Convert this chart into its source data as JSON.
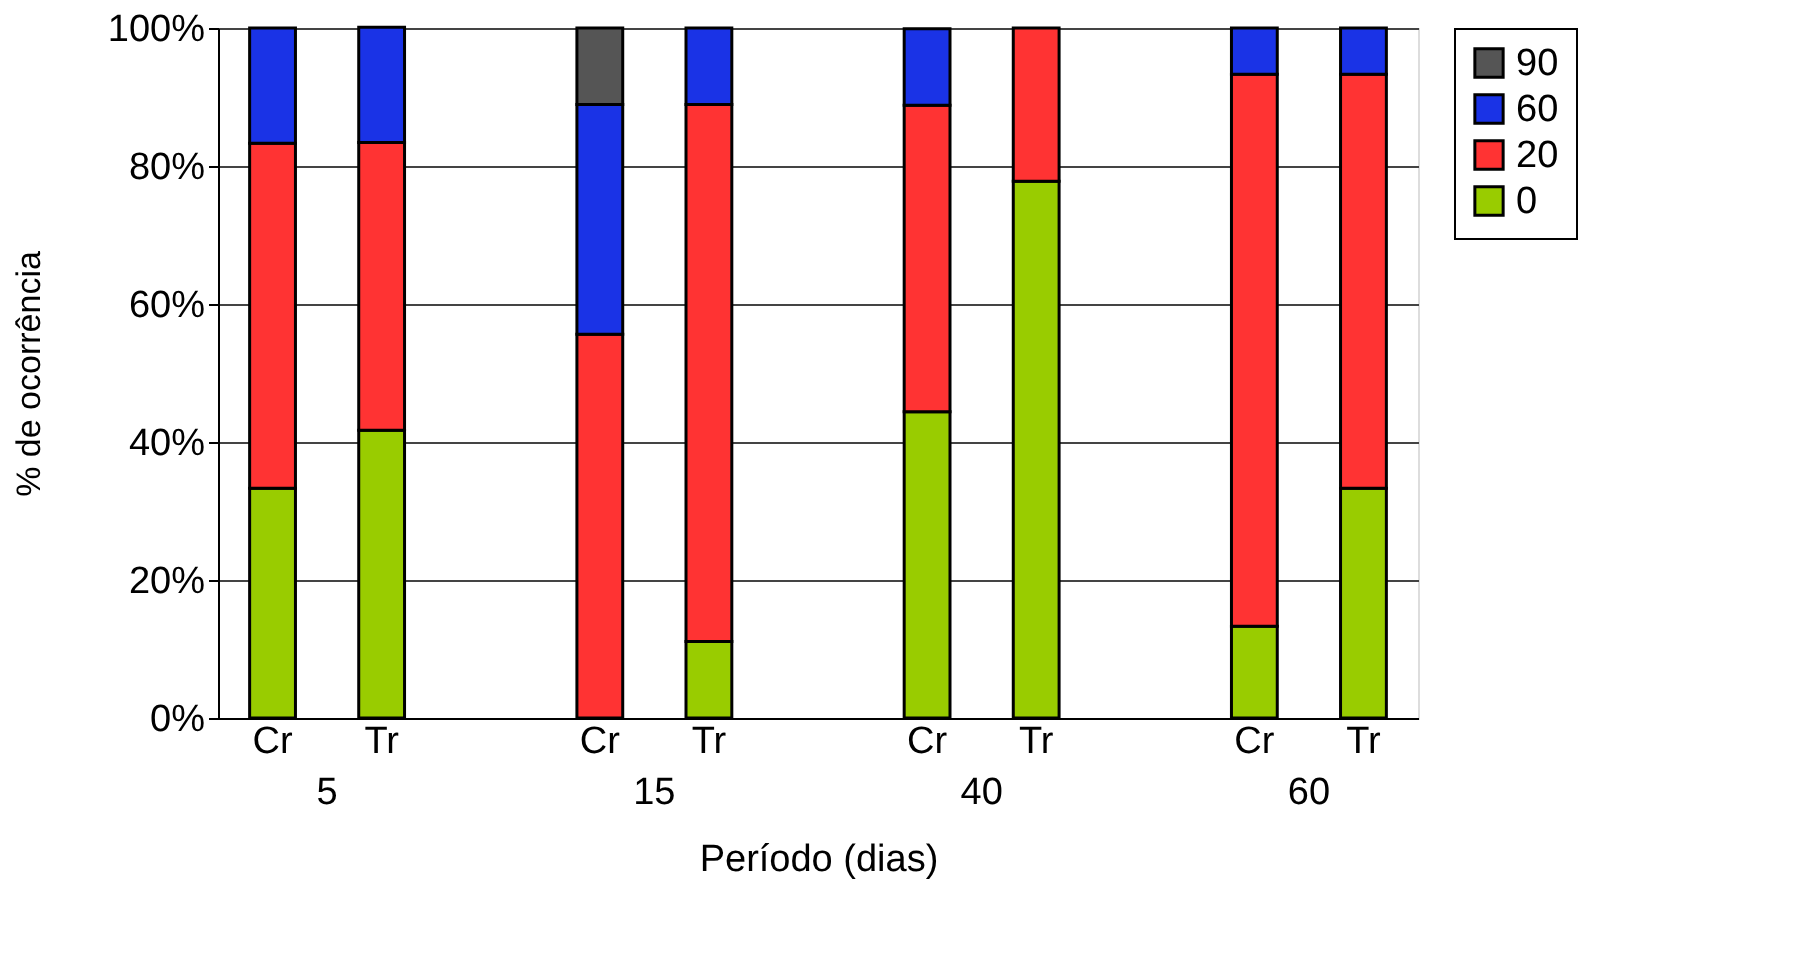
{
  "chart_data": {
    "type": "bar",
    "stacked": true,
    "xlabel": "Período (dias)",
    "ylabel": "% de ocorrência",
    "categories": [
      "Cr",
      "Tr",
      null,
      "Cr",
      "Tr",
      null,
      "Cr",
      "Tr",
      null,
      "Cr",
      "Tr"
    ],
    "series": [
      {
        "name": "0",
        "color": "#99cc00",
        "values": [
          33.3,
          41.7,
          null,
          0,
          11.1,
          null,
          44.4,
          77.8,
          null,
          13.3,
          33.3
        ]
      },
      {
        "name": "20",
        "color": "#ff3333",
        "values": [
          50,
          41.7,
          null,
          55.6,
          77.8,
          null,
          44.4,
          22.2,
          null,
          80,
          60
        ]
      },
      {
        "name": "60",
        "color": "#1a33e6",
        "values": [
          16.7,
          16.7,
          null,
          33.3,
          11.1,
          null,
          11.1,
          0,
          null,
          6.7,
          6.7
        ]
      },
      {
        "name": "90",
        "color": "#555555",
        "values": [
          0,
          0,
          null,
          11.1,
          0,
          null,
          0,
          0,
          null,
          0,
          0
        ]
      }
    ],
    "ylim": [
      0,
      100
    ],
    "yticks": [
      {
        "value": 0,
        "label": "0%"
      },
      {
        "value": 20,
        "label": "20%"
      },
      {
        "value": 40,
        "label": "40%"
      },
      {
        "value": 60,
        "label": "60%"
      },
      {
        "value": 80,
        "label": "80%"
      },
      {
        "value": 100,
        "label": "100%"
      }
    ],
    "grid": "y",
    "legend": "right",
    "annotations": [
      "5",
      "15",
      "40",
      "60"
    ]
  }
}
